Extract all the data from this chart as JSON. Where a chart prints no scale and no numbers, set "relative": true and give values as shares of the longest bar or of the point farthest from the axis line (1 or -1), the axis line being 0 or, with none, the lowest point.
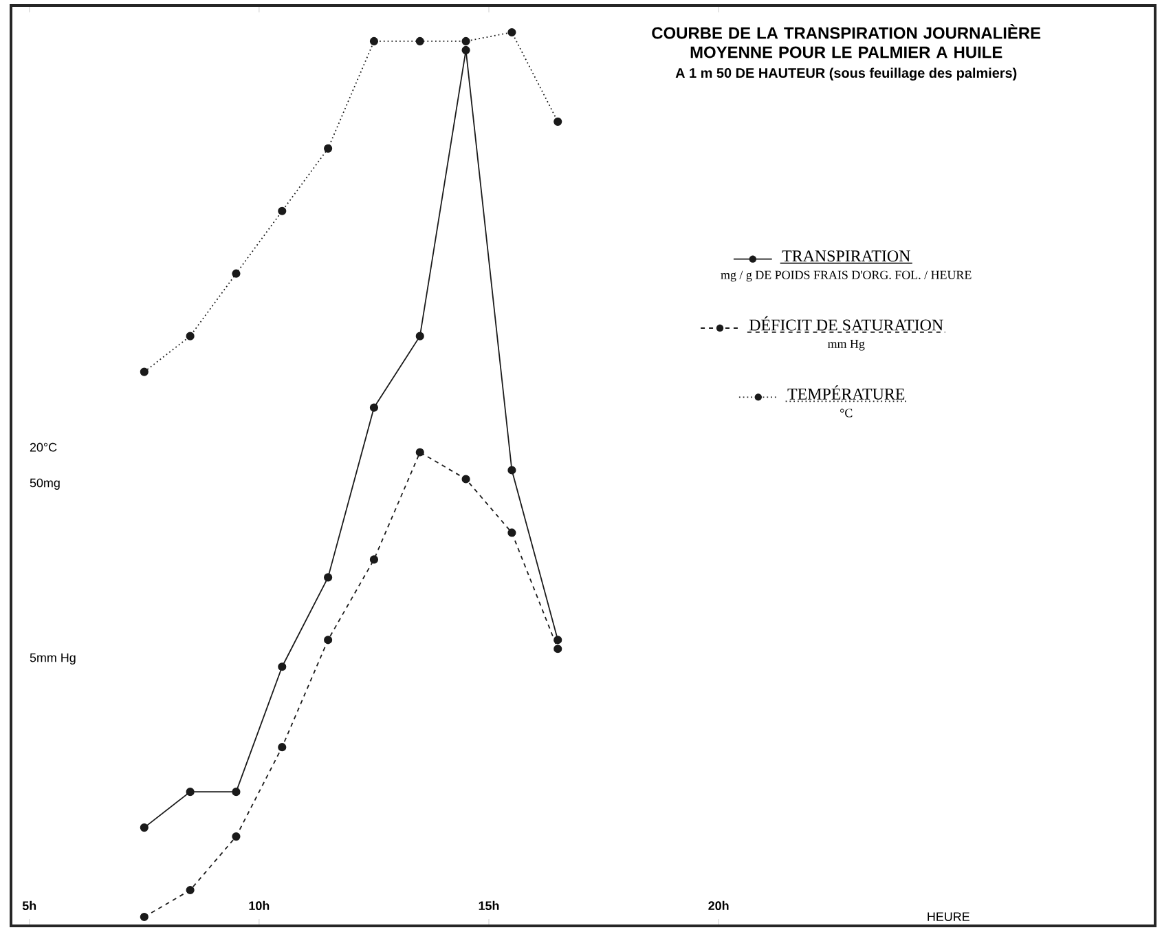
{
  "chart_data": {
    "type": "line",
    "relative": true,
    "title": "COURBE DE LA TRANSPIRATION JOURNALIÈRE MOYENNE POUR LE PALMIER A HUILE",
    "subtitle": "A 1 m 50 DE HAUTEUR (sous feuillage des palmiers)",
    "xlabel": "HEURE",
    "xlim": [
      4.6,
      29.5
    ],
    "xticks": [
      {
        "value": 5,
        "label": "5h"
      },
      {
        "value": 10,
        "label": "10h"
      },
      {
        "value": 15,
        "label": "15h"
      },
      {
        "value": 20,
        "label": "20h"
      }
    ],
    "x": [
      7.5,
      8.5,
      9.5,
      10.5,
      11.5,
      12.5,
      13.5,
      14.5,
      15.5,
      16.5
    ],
    "marker": "circle",
    "legend": "right",
    "grid": false,
    "series": [
      {
        "name": "TRANSPIRATION",
        "color": "#1a1a1a",
        "line_style": "solid",
        "values": [
          0.11,
          0.15,
          0.15,
          0.29,
          0.39,
          0.58,
          0.66,
          0.98,
          0.51,
          0.32
        ]
      },
      {
        "name": "DÉFICIT DE SATURATION",
        "color": "#1a1a1a",
        "line_style": "dashed",
        "values": [
          0.01,
          0.04,
          0.1,
          0.2,
          0.32,
          0.41,
          0.53,
          0.5,
          0.44,
          0.31
        ]
      },
      {
        "name": "TEMPÉRATURE",
        "color": "#1a1a1a",
        "line_style": "dotted",
        "values": [
          0.62,
          0.66,
          0.73,
          0.8,
          0.87,
          0.99,
          0.99,
          0.99,
          1.0,
          0.9
        ]
      }
    ],
    "annotations": [
      "mg / g DE POIDS FRAIS D'ORG. FOL. / HEURE",
      "mm Hg",
      "°C",
      "20°C",
      "50mg",
      "5mm Hg"
    ]
  }
}
